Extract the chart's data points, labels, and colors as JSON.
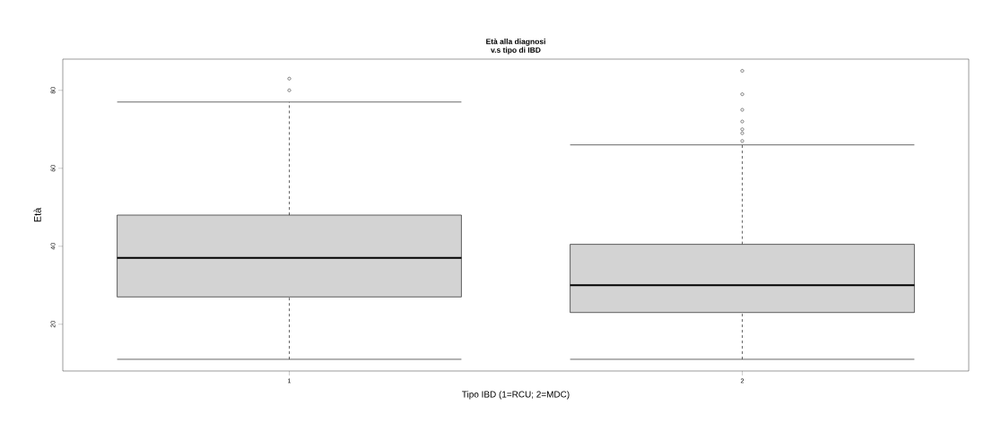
{
  "chart_data": {
    "type": "box",
    "title": "Età alla diagnosi v.s tipo di IBD",
    "xlabel": "Tipo IBD (1=RCU; 2=MDC)",
    "ylabel": "Età",
    "categories": [
      "1",
      "2"
    ],
    "color": "#d3d3d3",
    "boxes": [
      {
        "low": 11,
        "q1": 27,
        "median": 37,
        "q3": 48,
        "high": 77,
        "outliers": [
          80,
          83
        ]
      },
      {
        "low": 11,
        "q1": 23,
        "median": 30,
        "q3": 40.5,
        "high": 66,
        "outliers": [
          67,
          69,
          70,
          72,
          75,
          79,
          85
        ]
      }
    ],
    "ylim": [
      8,
      88
    ],
    "yticks": [
      20,
      40,
      60,
      80
    ]
  }
}
